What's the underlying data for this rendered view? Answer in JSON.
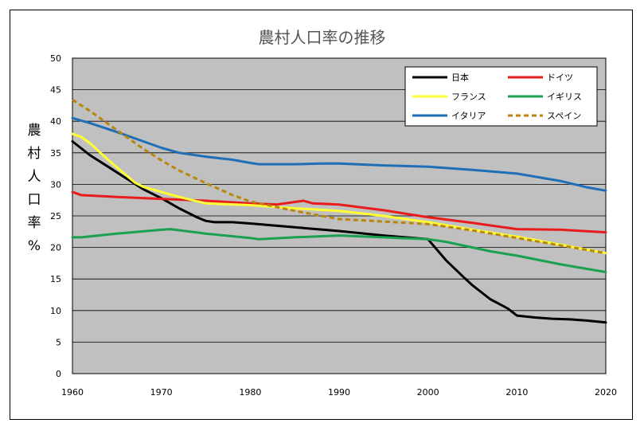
{
  "chart_data": {
    "type": "line",
    "title": "農村人口率の推移",
    "ylabel": "農村人口率%",
    "xlabel": "",
    "xlim": [
      1960,
      2020
    ],
    "ylim": [
      0,
      50
    ],
    "xticks": [
      1960,
      1970,
      1980,
      1990,
      2000,
      2010,
      2020
    ],
    "yticks": [
      0,
      5,
      10,
      15,
      20,
      25,
      30,
      35,
      40,
      45,
      50
    ],
    "grid": "horizontal",
    "legend_position": "top-right",
    "series": [
      {
        "name": "日本",
        "color": "#000000",
        "dashed": false,
        "x": [
          1960,
          1962,
          1964,
          1966,
          1968,
          1970,
          1972,
          1974,
          1975,
          1976,
          1978,
          1980,
          1985,
          1990,
          1995,
          2000,
          2002,
          2004,
          2005,
          2007,
          2009,
          2010,
          2012,
          2014,
          2016,
          2018,
          2020
        ],
        "y": [
          36.8,
          34.6,
          32.8,
          31.0,
          29.2,
          27.8,
          26.2,
          24.8,
          24.2,
          24.0,
          24.0,
          23.8,
          23.2,
          22.6,
          21.9,
          21.3,
          18.0,
          15.3,
          14.0,
          11.8,
          10.3,
          9.2,
          8.9,
          8.7,
          8.6,
          8.4,
          8.1
        ]
      },
      {
        "name": "ドイツ",
        "color": "#e81c1c",
        "dashed": false,
        "x": [
          1960,
          1961,
          1965,
          1970,
          1975,
          1980,
          1983,
          1986,
          1987,
          1990,
          1995,
          2000,
          2005,
          2010,
          2015,
          2020
        ],
        "y": [
          28.8,
          28.3,
          28.0,
          27.7,
          27.4,
          27.0,
          26.8,
          27.4,
          27.0,
          26.8,
          25.9,
          24.8,
          23.9,
          22.9,
          22.8,
          22.4
        ]
      },
      {
        "name": "フランス",
        "color": "#ffff33",
        "dashed": false,
        "x": [
          1960,
          1961,
          1962,
          1963,
          1964,
          1965,
          1966,
          1967,
          1968,
          1970,
          1972,
          1975,
          1980,
          1985,
          1990,
          1995,
          2000,
          2005,
          2010,
          2015,
          2020
        ],
        "y": [
          38.0,
          37.5,
          36.5,
          35.2,
          33.9,
          32.7,
          31.5,
          30.3,
          29.6,
          28.8,
          28.0,
          27.0,
          26.7,
          26.2,
          25.8,
          25.0,
          24.0,
          22.8,
          21.7,
          20.4,
          19.1
        ]
      },
      {
        "name": "イギリス",
        "color": "#1aa050",
        "dashed": false,
        "x": [
          1960,
          1961,
          1965,
          1970,
          1971,
          1975,
          1980,
          1981,
          1985,
          1990,
          1995,
          2000,
          2002,
          2005,
          2007,
          2010,
          2015,
          2020
        ],
        "y": [
          21.6,
          21.6,
          22.2,
          22.8,
          22.9,
          22.2,
          21.5,
          21.3,
          21.6,
          21.9,
          21.6,
          21.3,
          20.9,
          20.0,
          19.4,
          18.7,
          17.3,
          16.1
        ]
      },
      {
        "name": "イタリア",
        "color": "#1e6fb5",
        "dashed": false,
        "x": [
          1960,
          1962,
          1965,
          1970,
          1972,
          1975,
          1978,
          1980,
          1981,
          1985,
          1988,
          1990,
          1995,
          2000,
          2005,
          2010,
          2015,
          2018,
          2020
        ],
        "y": [
          40.5,
          39.7,
          38.3,
          35.8,
          35.0,
          34.4,
          33.9,
          33.4,
          33.2,
          33.2,
          33.3,
          33.3,
          33.0,
          32.8,
          32.3,
          31.7,
          30.5,
          29.5,
          29.0
        ]
      },
      {
        "name": "スペイン",
        "color": "#b8860b",
        "dashed": true,
        "x": [
          1960,
          1962,
          1965,
          1968,
          1970,
          1972,
          1975,
          1978,
          1980,
          1985,
          1990,
          1995,
          2000,
          2005,
          2010,
          2015,
          2020
        ],
        "y": [
          43.4,
          41.6,
          38.6,
          35.6,
          33.8,
          32.2,
          30.2,
          28.3,
          27.3,
          25.8,
          24.5,
          24.1,
          23.7,
          22.7,
          21.5,
          20.3,
          19.1
        ]
      }
    ]
  }
}
